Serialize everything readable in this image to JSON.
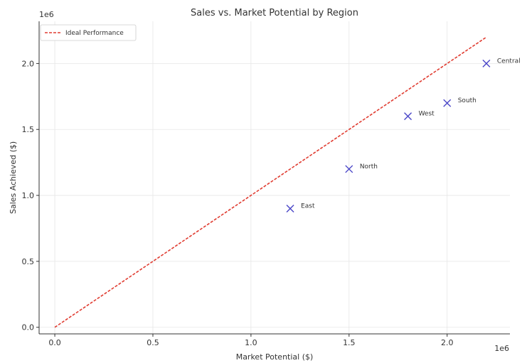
{
  "chart_data": {
    "type": "scatter",
    "title": "Sales vs. Market Potential by Region",
    "xlabel": "Market Potential ($)",
    "ylabel": "Sales Achieved ($)",
    "x_offset_label": "1e6",
    "y_offset_label": "1e6",
    "xlim": [
      -0.08,
      2.32
    ],
    "ylim": [
      -0.05,
      2.32
    ],
    "x_ticks": [
      0.0,
      0.5,
      1.0,
      1.5,
      2.0
    ],
    "x_tick_labels": [
      "0.0",
      "0.5",
      "1.0",
      "1.5",
      "2.0"
    ],
    "y_ticks": [
      0.0,
      0.5,
      1.0,
      1.5,
      2.0
    ],
    "y_tick_labels": [
      "0.0",
      "0.5",
      "1.0",
      "1.5",
      "2.0"
    ],
    "grid": true,
    "legend_position": "top-left",
    "points": [
      {
        "label": "East",
        "x": 1.2,
        "y": 0.9
      },
      {
        "label": "North",
        "x": 1.5,
        "y": 1.2
      },
      {
        "label": "West",
        "x": 1.8,
        "y": 1.6
      },
      {
        "label": "South",
        "x": 2.0,
        "y": 1.7
      },
      {
        "label": "Central",
        "x": 2.2,
        "y": 2.0
      }
    ],
    "reference_line": {
      "name": "Ideal Performance",
      "x": [
        0.0,
        2.2
      ],
      "y": [
        0.0,
        2.2
      ],
      "style": "dashed",
      "color": "#e03c31"
    },
    "marker_color": "#4a46c8"
  }
}
